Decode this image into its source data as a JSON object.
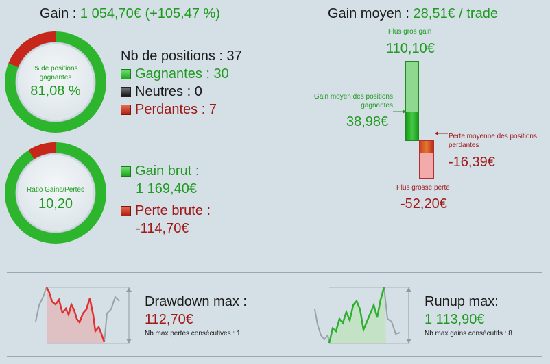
{
  "gain": {
    "label": "Gain : ",
    "value": "1 054,70€ (+105,47 %)"
  },
  "positions_donut": {
    "caption": "% de positions gagnantes",
    "value": "81,08 %",
    "fraction": 0.8108
  },
  "positions": {
    "title": "Nb de positions : 37",
    "winners": "Gagnantes : 30",
    "neutral": "Neutres : 0",
    "losers": "Perdantes : 7"
  },
  "ratio_donut": {
    "caption": "Ratio Gains/Pertes",
    "value": "10,20",
    "fraction": 0.9107
  },
  "gross": {
    "gain_label": "Gain brut :",
    "gain_value": "1 169,40€",
    "loss_label": "Perte brute :",
    "loss_value": "-114,70€"
  },
  "avg": {
    "label": "Gain moyen : ",
    "value": "28,51€ / trade",
    "best_label": "Plus gros gain",
    "best_value": "110,10€",
    "avg_win_label": "Gain moyen des positions gagnantes",
    "avg_win_value": "38,98€",
    "avg_loss_label": "Perte moyenne des positions perdantes",
    "avg_loss_value": "-16,39€",
    "worst_label": "Plus grosse perte",
    "worst_value": "-52,20€"
  },
  "drawdown": {
    "title": "Drawdown max :",
    "value": "112,70€",
    "sub": "Nb max pertes consécutives : 1"
  },
  "runup": {
    "title": "Runup max:",
    "value": "1 113,90€",
    "sub": "Nb max gains consécutifs : 8"
  },
  "colors": {
    "green": "#1f9a1f",
    "red": "#a01818",
    "background": "#d4dfe6"
  }
}
